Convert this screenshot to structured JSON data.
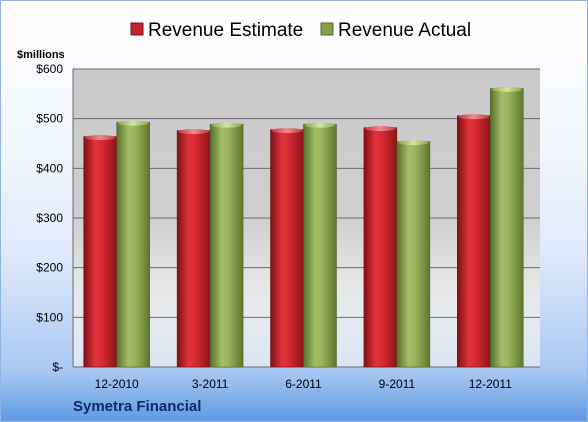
{
  "chart_data": {
    "type": "bar",
    "title": "",
    "ylabel": "$millions",
    "xlabel": "",
    "categories": [
      "12-2010",
      "3-2011",
      "6-2011",
      "9-2011",
      "12-2011"
    ],
    "series": [
      {
        "name": "Revenue Estimate",
        "values": [
          464,
          476,
          478,
          482,
          506
        ],
        "color": "#c0232b"
      },
      {
        "name": "Revenue Actual",
        "values": [
          493,
          489,
          489,
          454,
          561
        ],
        "color": "#86a04a"
      }
    ],
    "ylim": [
      0,
      600
    ],
    "yticks": [
      0,
      100,
      200,
      300,
      400,
      500,
      600
    ],
    "ytick_labels": [
      "$-",
      "$100",
      "$200",
      "$300",
      "$400",
      "$500",
      "$600"
    ],
    "grid": true,
    "legend_position": "top"
  },
  "footer": {
    "company": "Symetra Financial"
  }
}
